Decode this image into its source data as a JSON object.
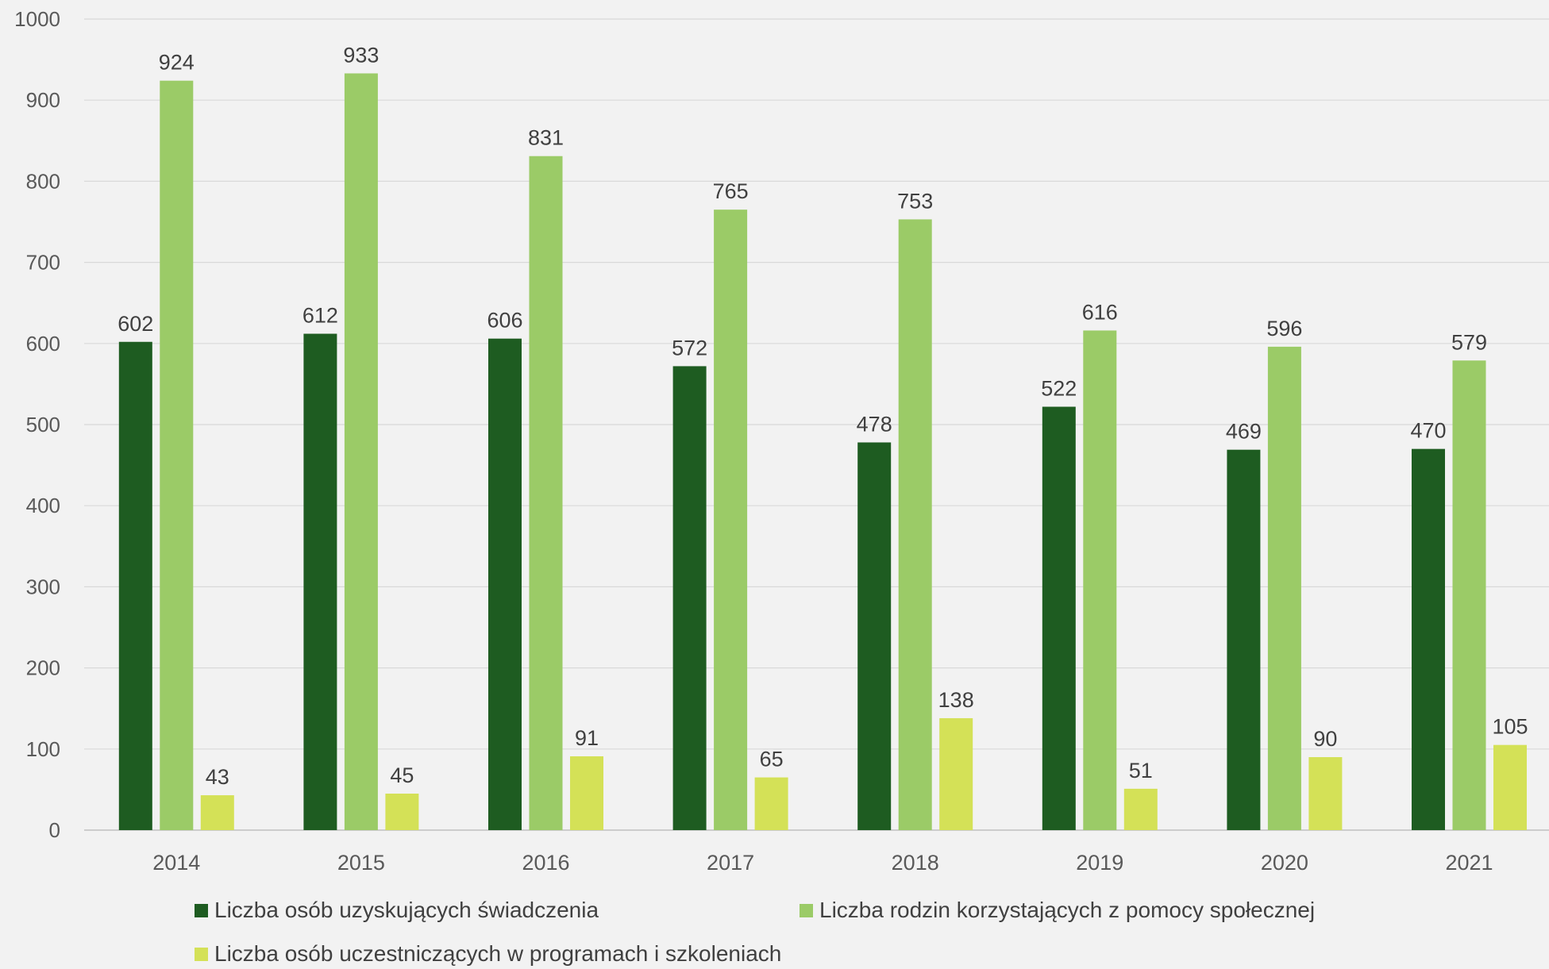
{
  "chart_data": {
    "type": "bar",
    "title": "",
    "xlabel": "",
    "ylabel": "",
    "categories": [
      "2014",
      "2015",
      "2016",
      "2017",
      "2018",
      "2019",
      "2020",
      "2021"
    ],
    "ylim": [
      0,
      1000
    ],
    "yticks": [
      0,
      100,
      200,
      300,
      400,
      500,
      600,
      700,
      800,
      900,
      1000
    ],
    "grid": true,
    "legend_position": "bottom",
    "series": [
      {
        "name": "Liczba osób uzyskujących świadczenia",
        "color": "#1e5c21",
        "values": [
          602,
          612,
          606,
          572,
          478,
          522,
          469,
          470
        ]
      },
      {
        "name": "Liczba rodzin korzystających z pomocy społecznej",
        "color": "#9bcb67",
        "values": [
          924,
          933,
          831,
          765,
          753,
          616,
          596,
          579
        ]
      },
      {
        "name": "Liczba osób uczestniczących w programach i szkoleniach",
        "color": "#d4e157",
        "values": [
          43,
          45,
          91,
          65,
          138,
          51,
          90,
          105
        ]
      }
    ]
  }
}
